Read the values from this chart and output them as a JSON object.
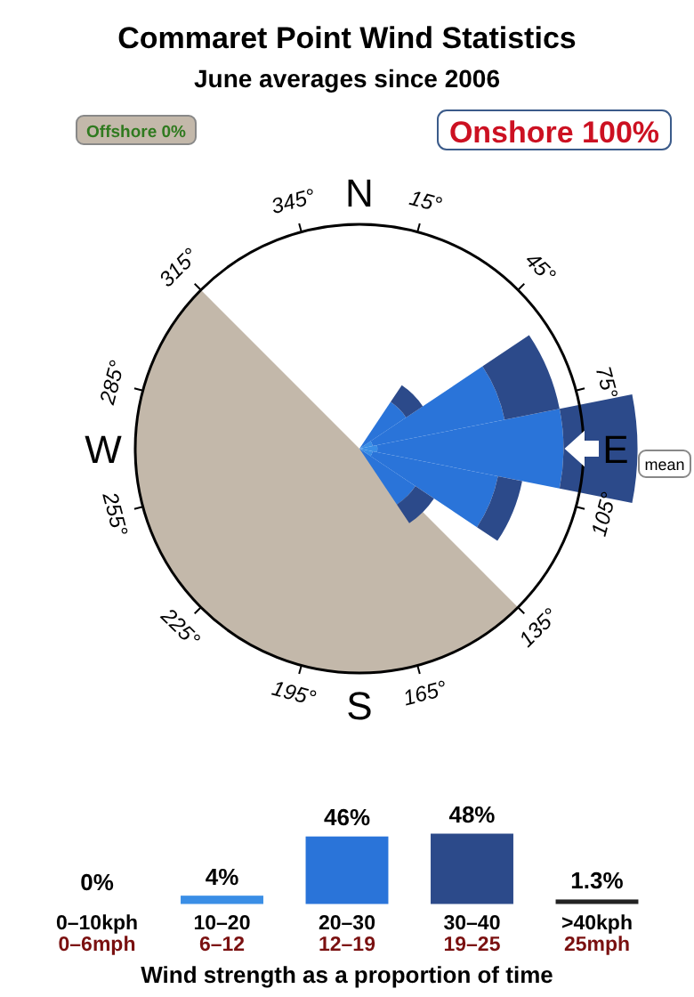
{
  "chart_data": [
    {
      "type": "other",
      "title": "Commaret Point Wind Statistics",
      "subtitle": "June averages since 2006",
      "annotations": [
        "Offshore 0%",
        "Onshore 100%",
        "mean",
        "N",
        "E",
        "S",
        "W",
        "15°",
        "45°",
        "75°",
        "105°",
        "135°",
        "165°",
        "195°",
        "225°",
        "255°",
        "285°",
        "315°",
        "345°"
      ]
    },
    {
      "type": "bar",
      "xlabel": "Wind strength as a proportion of time",
      "categories": [
        "0–10kph\n0–6mph",
        "10–20\n6–12",
        "20–30\n12–19",
        "30–40\n19–25",
        ">40kph\n25mph"
      ],
      "values": [
        0,
        4,
        46,
        48,
        1.3
      ],
      "colors": [
        "#a0a8b0",
        "#3a8ee6",
        "#2a74d9",
        "#2c4a8a",
        "#222222"
      ],
      "value_labels": [
        "0%",
        "4%",
        "46%",
        "48%",
        "1.3%"
      ]
    }
  ]
}
